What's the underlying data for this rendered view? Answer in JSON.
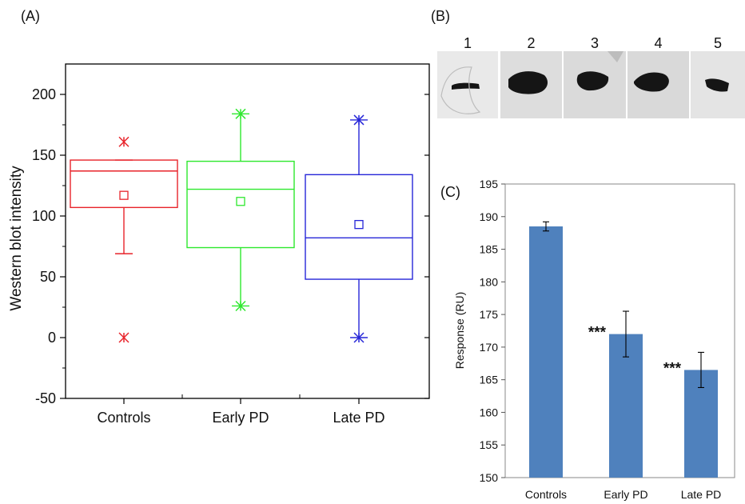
{
  "panels": {
    "a_label": "(A)",
    "b_label": "(B)",
    "c_label": "(C)"
  },
  "blot": {
    "lanes": [
      "1",
      "2",
      "3",
      "4",
      "5"
    ]
  },
  "chart_data": [
    {
      "type": "box",
      "title": "",
      "ylabel": "Western blot intensity",
      "xlabel": "",
      "ylim": [
        -50,
        225
      ],
      "yticks": [
        -50,
        0,
        50,
        100,
        150,
        200
      ],
      "categories": [
        "Controls",
        "Early PD",
        "Late PD"
      ],
      "series": [
        {
          "color": "#e8232a",
          "q1": 107,
          "median": 137,
          "q3": 146,
          "mean": 117,
          "whisker_low": 69,
          "whisker_high": 146,
          "outliers": [
            161,
            0
          ]
        },
        {
          "color": "#2ee82e",
          "q1": 74,
          "median": 122,
          "q3": 145,
          "mean": 112,
          "whisker_low": 26,
          "whisker_high": 184,
          "outliers": [
            184,
            26
          ]
        },
        {
          "color": "#2626d8",
          "q1": 48,
          "median": 82,
          "q3": 134,
          "mean": 93,
          "whisker_low": 0,
          "whisker_high": 179,
          "outliers": [
            179,
            0
          ]
        }
      ]
    },
    {
      "type": "bar",
      "title": "",
      "ylabel": "Response (RU)",
      "xlabel": "",
      "ylim": [
        150,
        195
      ],
      "yticks": [
        150,
        155,
        160,
        165,
        170,
        175,
        180,
        185,
        190,
        195
      ],
      "categories": [
        "Controls",
        "Early PD",
        "Late PD"
      ],
      "values": [
        188.5,
        172,
        166.5
      ],
      "errors": [
        0.7,
        3.5,
        2.7
      ],
      "significance": [
        "",
        "***",
        "***"
      ],
      "bar_color": "#4f81bd"
    }
  ]
}
